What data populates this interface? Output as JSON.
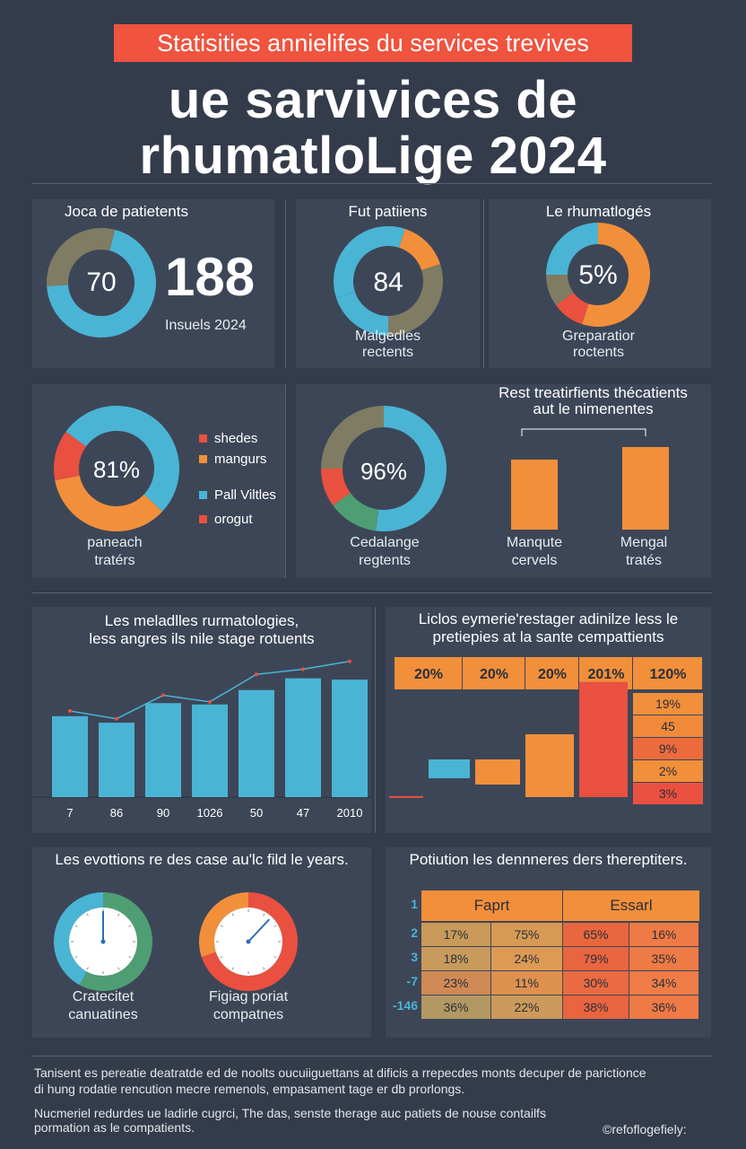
{
  "header": {
    "subtitle": "Statisities annielifes du services trevives",
    "title_line1": "ue sarvivices de",
    "title_line2": "rhumatloLige 2024"
  },
  "row1": {
    "p1": {
      "title": "Joca de patietents",
      "donut_value": "70",
      "big_number": "188",
      "caption": "Insuels 2024"
    },
    "p2": {
      "title": "Fut patiiens",
      "donut_value": "84",
      "caption1": "Malgedles",
      "caption2": "rectents"
    },
    "p3": {
      "title": "Le rhumatlogés",
      "donut_value": "5%",
      "caption1": "Greparatior",
      "caption2": "roctents"
    }
  },
  "row2": {
    "p1": {
      "donut_value": "81%",
      "caption1": "paneach",
      "caption2": "tratérs",
      "legend": [
        {
          "label": "shedes",
          "color": "#e9503f"
        },
        {
          "label": "mangurs",
          "color": "#f28f3b"
        },
        {
          "label": "Pall Viltles",
          "color": "#4ab4d4"
        },
        {
          "label": "orogut",
          "color": "#e9503f"
        }
      ]
    },
    "p2": {
      "donut_value": "96%",
      "caption1": "Cedalange",
      "caption2": "regtents"
    },
    "p3": {
      "title1": "Rest treatirfients thécatients",
      "title2": "aut le nimenentes",
      "bar1_label1": "Manqute",
      "bar1_label2": "cervels",
      "bar2_label1": "Mengal",
      "bar2_label2": "tratés"
    }
  },
  "row3": {
    "left_title1": "Les meladlles rurmatologies,",
    "left_title2": "less angres ils nile stage rotuents",
    "right_title1": "Liclos eymerie'restager adinilze less le",
    "right_title2": "pretiepies at la sante cempattients",
    "right_headers": [
      "20%",
      "20%",
      "20%",
      "201%",
      "120%"
    ],
    "right_side_values": [
      "19%",
      "45",
      "9%",
      "2%",
      "3%"
    ]
  },
  "row4": {
    "left_title": "Les evottions re des case au'lc fild le years.",
    "gauge1_caption1": "Cratecitet",
    "gauge1_caption2": "canuatines",
    "gauge2_caption1": "Figiag poriat",
    "gauge2_caption2": "compatnes",
    "right_title": "Potiution les dennneres ders thereptiters.",
    "table": {
      "col_headers": [
        "Faprt",
        "Essarl"
      ],
      "row_labels": [
        "1",
        "2",
        "3",
        "-7",
        "-146"
      ],
      "rows": [
        [
          "17%",
          "75%",
          "65%",
          "16%"
        ],
        [
          "18%",
          "24%",
          "79%",
          "35%"
        ],
        [
          "23%",
          "11%",
          "30%",
          "34%"
        ],
        [
          "36%",
          "22%",
          "38%",
          "36%"
        ]
      ]
    }
  },
  "footer": {
    "line1": "Tanisent es pereatie deatratde ed de noolts oucuiiguettans at dificis a rrepecdes monts decuper de parictionce",
    "line2": "di hung rodatie rencution mecre remenols, empasament tage er db prorlongs.",
    "line3": "Nucmeriel redurdes ue ladirle cugrci, The das, senste therage auc patiets de nouse contailfs",
    "line4": "pormation as le compatients.",
    "credit": "©refoflogefiely:"
  },
  "chart_data": [
    {
      "type": "pie",
      "title": "Joca de patietents",
      "center_label": "70",
      "values": [
        70,
        30
      ],
      "colors": [
        "#4ab4d4",
        "#7f7c63"
      ]
    },
    {
      "type": "pie",
      "title": "Fut patiiens",
      "center_label": "84",
      "values": [
        35,
        15,
        30,
        20
      ],
      "colors": [
        "#4ab4d4",
        "#f28f3b",
        "#7f7c63",
        "#4ab4d4"
      ]
    },
    {
      "type": "pie",
      "title": "Le rhumatlogés",
      "center_label": "5%",
      "values": [
        55,
        10,
        10,
        25
      ],
      "colors": [
        "#f28f3b",
        "#e9503f",
        "#7f7c63",
        "#4ab4d4"
      ]
    },
    {
      "type": "pie",
      "center_label": "81%",
      "values": [
        52,
        35,
        13
      ],
      "colors": [
        "#4ab4d4",
        "#f28f3b",
        "#e9503f"
      ]
    },
    {
      "type": "pie",
      "center_label": "96%",
      "values": [
        52,
        13,
        10,
        25
      ],
      "colors": [
        "#4ab4d4",
        "#4f9e73",
        "#e9503f",
        "#7f7c63"
      ]
    },
    {
      "type": "bar",
      "categories": [
        "Manqute cervels",
        "Mengal tratés"
      ],
      "values": [
        78,
        92
      ],
      "ylim": [
        0,
        100
      ]
    },
    {
      "type": "bar",
      "title": "Les meladlles rurmatologies, less angres ils nile stage rotuents",
      "categories": [
        "7",
        "86",
        "90",
        "1026",
        "50",
        "47",
        "2010"
      ],
      "values": [
        62,
        57,
        72,
        71,
        82,
        91,
        90
      ],
      "line_values": [
        66,
        60,
        78,
        73,
        94,
        98,
        104
      ],
      "ylim": [
        0,
        110
      ]
    },
    {
      "type": "bar",
      "title": "Liclos eymerie'restager adinilze less le pretiepies at la sante cempattients",
      "categories": [
        "20%",
        "20%",
        "20%",
        "201%",
        "120%"
      ],
      "values": [
        [
          0,
          0.5
        ],
        [
          9,
          18
        ],
        [
          18,
          6
        ],
        [
          0,
          30
        ],
        [
          0,
          55
        ]
      ],
      "ylim": [
        0,
        60
      ]
    },
    {
      "type": "pie",
      "title": "Cratecitet canuatines",
      "values": [
        58,
        42
      ],
      "colors": [
        "#4f9e73",
        "#4ab4d4"
      ],
      "needle": 0
    },
    {
      "type": "pie",
      "title": "Figiag poriat compatnes",
      "values": [
        70,
        30
      ],
      "colors": [
        "#e9503f",
        "#f28f3b"
      ],
      "needle": 0.12
    }
  ]
}
